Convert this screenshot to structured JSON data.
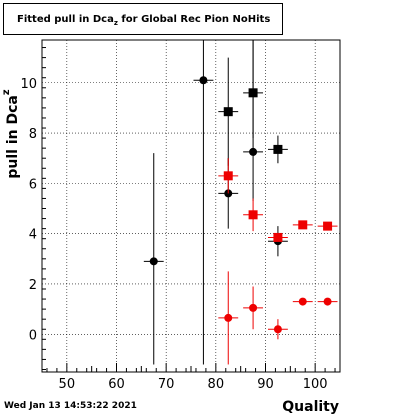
{
  "title": {
    "text": "Fitted pull in Dca",
    "subscript": "z",
    "suffix": " for Global Rec Pion NoHits"
  },
  "timestamp": "Wed Jan 13 14:53:22 2021",
  "chart_data": {
    "type": "scatter",
    "title": "Fitted pull in Dca_z for Global Rec Pion NoHits",
    "xlabel": "Quality",
    "ylabel": {
      "text": "pull in Dca",
      "subscript": "z"
    },
    "xlim": [
      45,
      105
    ],
    "ylim": [
      -1.5,
      11.7
    ],
    "x_ticks": [
      50,
      60,
      70,
      80,
      90,
      100
    ],
    "y_ticks": [
      0,
      2,
      4,
      6,
      8,
      10
    ],
    "grid": true,
    "legend": "none",
    "series": [
      {
        "marker": "circle",
        "color": "#000000",
        "points": [
          {
            "x": 67.5,
            "y": 2.9,
            "xerr": 2.0,
            "ylo": -1.2,
            "yhi": 7.2
          },
          {
            "x": 77.5,
            "y": 10.1,
            "xerr": 2.0,
            "ylo": -1.2,
            "yhi": 11.7
          },
          {
            "x": 82.5,
            "y": 5.6,
            "xerr": 2.0,
            "ylo": 4.2,
            "yhi": 7.0
          },
          {
            "x": 87.5,
            "y": 7.25,
            "xerr": 2.0,
            "ylo": 5.3,
            "yhi": 11.7
          },
          {
            "x": 92.5,
            "y": 3.7,
            "xerr": 2.0,
            "ylo": 3.1,
            "yhi": 4.3
          }
        ]
      },
      {
        "marker": "square",
        "color": "#000000",
        "points": [
          {
            "x": 82.5,
            "y": 8.85,
            "xerr": 2.0,
            "ylo": 6.7,
            "yhi": 11.0
          },
          {
            "x": 87.5,
            "y": 9.6,
            "xerr": 2.0,
            "ylo": 7.8,
            "yhi": 11.7
          },
          {
            "x": 92.5,
            "y": 7.35,
            "xerr": 2.0,
            "ylo": 6.8,
            "yhi": 7.9
          }
        ]
      },
      {
        "marker": "square",
        "color": "#ee0000",
        "points": [
          {
            "x": 82.5,
            "y": 6.3,
            "xerr": 2.0,
            "ylo": 5.6,
            "yhi": 7.0
          },
          {
            "x": 87.5,
            "y": 4.75,
            "xerr": 2.0,
            "ylo": 4.1,
            "yhi": 5.4
          },
          {
            "x": 92.5,
            "y": 3.85,
            "xerr": 2.0,
            "ylo": 3.7,
            "yhi": 4.0
          },
          {
            "x": 97.5,
            "y": 4.35,
            "xerr": 2.0,
            "ylo": 4.35,
            "yhi": 4.35
          },
          {
            "x": 102.5,
            "y": 4.3,
            "xerr": 2.0,
            "ylo": 4.3,
            "yhi": 4.3
          }
        ]
      },
      {
        "marker": "circle",
        "color": "#ee0000",
        "points": [
          {
            "x": 82.5,
            "y": 0.65,
            "xerr": 2.0,
            "ylo": -1.2,
            "yhi": 2.5
          },
          {
            "x": 87.5,
            "y": 1.05,
            "xerr": 2.0,
            "ylo": 0.2,
            "yhi": 1.9
          },
          {
            "x": 92.5,
            "y": 0.2,
            "xerr": 2.0,
            "ylo": -0.2,
            "yhi": 0.6
          },
          {
            "x": 97.5,
            "y": 1.3,
            "xerr": 2.0,
            "ylo": 1.3,
            "yhi": 1.3
          },
          {
            "x": 102.5,
            "y": 1.3,
            "xerr": 2.0,
            "ylo": 1.3,
            "yhi": 1.3
          }
        ]
      }
    ]
  }
}
